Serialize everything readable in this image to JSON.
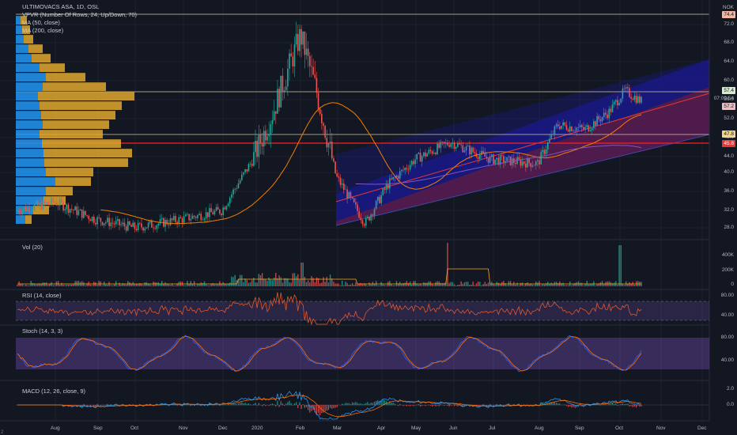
{
  "chart_title": "ULTIMOVACS ASA, 1D, OSL",
  "indicator_legends": {
    "vpvr": "VPVR (Number Of Rows, 24, Up/Down, 70)",
    "ma50": "MA (50, close)",
    "ma200": "MA (200, close)"
  },
  "pane_labels": {
    "volume": "Vol (20)",
    "rsi": "RSI (14, close)",
    "stoch": "Stoch (14, 3, 3)",
    "macd": "MACD (12, 26, close, 9)"
  },
  "currency": "NOK",
  "price_tags": {
    "top": "74.4",
    "last": "57.4",
    "countdown": "07:09:54",
    "green2": "57.2",
    "orange": "47.8",
    "red": "45.8"
  },
  "price_axis": [
    "72.0",
    "68.0",
    "64.0",
    "60.0",
    "56.0",
    "52.0",
    "48.0",
    "44.0",
    "40.0",
    "36.0",
    "32.0",
    "28.0"
  ],
  "volume_axis": [
    "400K",
    "200K",
    "0"
  ],
  "rsi_axis": [
    "80.00",
    "40.00"
  ],
  "stoch_axis": [
    "80.00",
    "40.00"
  ],
  "macd_axis": [
    "2.0",
    "0.0"
  ],
  "time_axis": [
    "Aug",
    "Sep",
    "Oct",
    "Nov",
    "Dec",
    "2020",
    "Feb",
    "Mar",
    "Apr",
    "May",
    "Jun",
    "Jul",
    "Aug",
    "Sep",
    "Oct",
    "Nov",
    "Dec"
  ],
  "corner_tag": "2",
  "colors": {
    "background": "#131722",
    "up": "#26a69a",
    "down": "#ef5350",
    "ma50": "#f57c00",
    "ma200": "#7e57c2",
    "channel_blue": "#1a1a8c",
    "channel_red": "#8b1e2e",
    "vp_up": "#2196f3",
    "vp_down": "#e0a82e",
    "rsi_band": "#7e57c2"
  },
  "chart_data": {
    "type": "candlestick",
    "title": "ULTIMOVACS ASA, 1D, OSL",
    "y_unit": "NOK",
    "ylim": [
      26,
      76
    ],
    "key_levels": {
      "top": 74.4,
      "last": 57.4,
      "level2": 57.2,
      "orange": 47.8,
      "red": 45.8
    },
    "price_path": [
      [
        "Jul",
        32
      ],
      [
        "Aug",
        34
      ],
      [
        "Sep",
        30
      ],
      [
        "Oct",
        28
      ],
      [
        "Nov",
        30
      ],
      [
        "Dec",
        32
      ],
      [
        "2020",
        44
      ],
      [
        "Jan-late",
        55
      ],
      [
        "Feb",
        73
      ],
      [
        "Feb-mid",
        60
      ],
      [
        "Mar",
        40
      ],
      [
        "Mar-mid",
        29
      ],
      [
        "Apr",
        38
      ],
      [
        "May",
        44
      ],
      [
        "Jun",
        48
      ],
      [
        "Jul",
        44
      ],
      [
        "Aug",
        43
      ],
      [
        "Aug-late",
        52
      ],
      [
        "Sep",
        51
      ],
      [
        "Sep-late",
        55
      ],
      [
        "Oct",
        60
      ],
      [
        "Oct-mid",
        57.4
      ]
    ]
  }
}
